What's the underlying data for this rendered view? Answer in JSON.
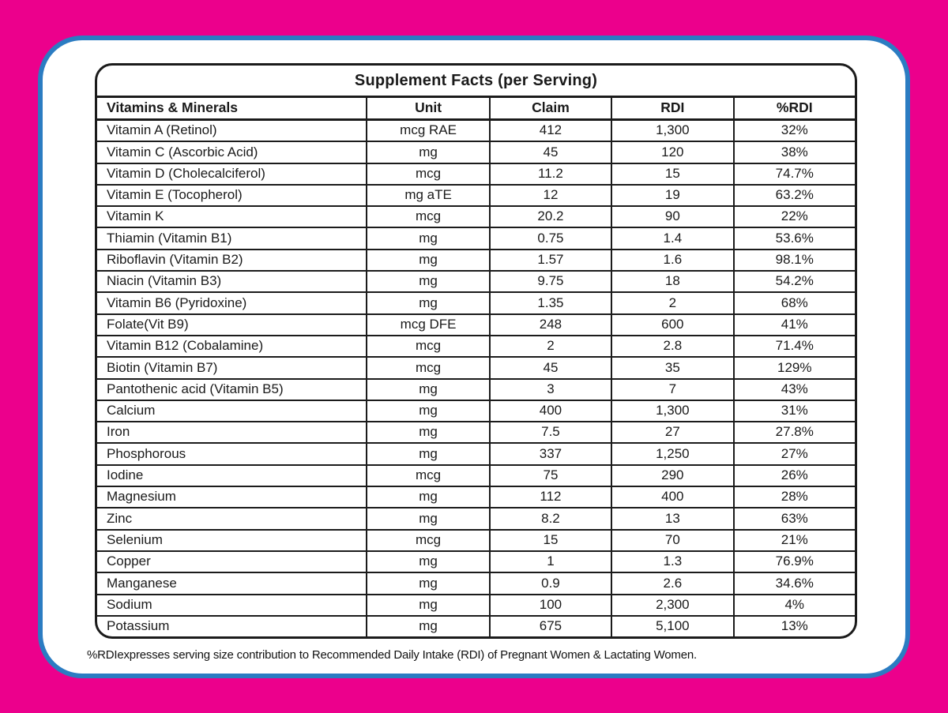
{
  "page": {
    "background_color": "#EC008C",
    "card_border_color": "#2B7CC2",
    "table_line_color": "#1B1B1B"
  },
  "table": {
    "title": "Supplement Facts (per Serving)",
    "columns": [
      "Vitamins & Minerals",
      "Unit",
      "Claim",
      "RDI",
      "%RDI"
    ],
    "rows": [
      [
        "Vitamin A (Retinol)",
        "mcg RAE",
        "412",
        "1,300",
        "32%"
      ],
      [
        "Vitamin C (Ascorbic Acid)",
        "mg",
        "45",
        "120",
        "38%"
      ],
      [
        "Vitamin D (Cholecalciferol)",
        "mcg",
        "11.2",
        "15",
        "74.7%"
      ],
      [
        "Vitamin E (Tocopherol)",
        "mg aTE",
        "12",
        "19",
        "63.2%"
      ],
      [
        "Vitamin K",
        "mcg",
        "20.2",
        "90",
        "22%"
      ],
      [
        "Thiamin (Vitamin B1)",
        "mg",
        "0.75",
        "1.4",
        "53.6%"
      ],
      [
        "Riboflavin (Vitamin B2)",
        "mg",
        "1.57",
        "1.6",
        "98.1%"
      ],
      [
        "Niacin (Vitamin B3)",
        "mg",
        "9.75",
        "18",
        "54.2%"
      ],
      [
        "Vitamin B6 (Pyridoxine)",
        "mg",
        "1.35",
        "2",
        "68%"
      ],
      [
        "Folate(Vit B9)",
        "mcg DFE",
        "248",
        "600",
        "41%"
      ],
      [
        "Vitamin B12 (Cobalamine)",
        "mcg",
        "2",
        "2.8",
        "71.4%"
      ],
      [
        "Biotin (Vitamin B7)",
        "mcg",
        "45",
        "35",
        "129%"
      ],
      [
        "Pantothenic acid (Vitamin B5)",
        "mg",
        "3",
        "7",
        "43%"
      ],
      [
        "Calcium",
        "mg",
        "400",
        "1,300",
        "31%"
      ],
      [
        "Iron",
        "mg",
        "7.5",
        "27",
        "27.8%"
      ],
      [
        "Phosphorous",
        "mg",
        "337",
        "1,250",
        "27%"
      ],
      [
        "Iodine",
        "mcg",
        "75",
        "290",
        "26%"
      ],
      [
        "Magnesium",
        "mg",
        "112",
        "400",
        "28%"
      ],
      [
        "Zinc",
        "mg",
        "8.2",
        "13",
        "63%"
      ],
      [
        "Selenium",
        "mcg",
        "15",
        "70",
        "21%"
      ],
      [
        "Copper",
        "mg",
        "1",
        "1.3",
        "76.9%"
      ],
      [
        "Manganese",
        "mg",
        "0.9",
        "2.6",
        "34.6%"
      ],
      [
        "Sodium",
        "mg",
        "100",
        "2,300",
        "4%"
      ],
      [
        "Potassium",
        "mg",
        "675",
        "5,100",
        "13%"
      ]
    ]
  },
  "footer": {
    "note": "%RDIexpresses serving size contribution to Recommended Daily Intake (RDI) of Pregnant Women & Lactating Women."
  }
}
